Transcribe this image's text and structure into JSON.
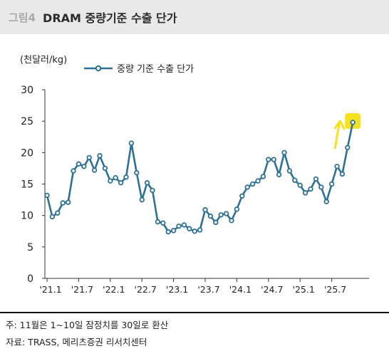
{
  "header": {
    "figure_number": "그림4",
    "title": "DRAM 중량기준 수출 단가"
  },
  "chart_data": {
    "type": "line",
    "unit_label": "(천달러/kg)",
    "legend": "중량 기준 수출 단가",
    "yticks": [
      "30",
      "25",
      "20",
      "15",
      "10",
      "5",
      "0"
    ],
    "ylim": [
      0,
      30
    ],
    "x_tick_labels": [
      "'21.1",
      "'21.7",
      "'22.1",
      "'22.7",
      "'23.1",
      "'23.7",
      "'24.1",
      "'24.7",
      "'25.1",
      "'25.7"
    ],
    "series": [
      {
        "values": [
          13.2,
          9.8,
          10.4,
          12.0,
          12.1,
          17.1,
          18.2,
          17.8,
          19.2,
          17.2,
          19.5,
          17.5,
          15.5,
          16.0,
          15.2,
          16.1,
          21.5,
          16.8,
          12.5,
          15.2,
          14.0,
          9.0,
          8.8,
          7.4,
          7.6,
          8.3,
          8.5,
          7.9,
          7.5,
          7.7,
          10.9,
          9.9,
          8.9,
          10.1,
          10.3,
          9.2,
          11.0,
          13.1,
          14.5,
          15.0,
          15.5,
          16.2,
          18.9,
          18.9,
          16.5,
          20.0,
          17.1,
          15.6,
          14.8,
          13.6,
          14.2,
          15.8,
          14.5,
          12.2,
          15.0,
          17.8,
          16.6,
          20.8,
          24.8
        ]
      }
    ],
    "highlight_last_point": true,
    "highlight_color": "#f5e11f",
    "line_color": "#2e7196",
    "marker_fill": "#ffffff",
    "arrow_color": "#f5e11f"
  },
  "notes": {
    "note_line": "주: 11월은 1~10일 잠정치를 30일로 환산",
    "source_line": "자료: TRASS, 메리츠증권 리서치센터"
  }
}
